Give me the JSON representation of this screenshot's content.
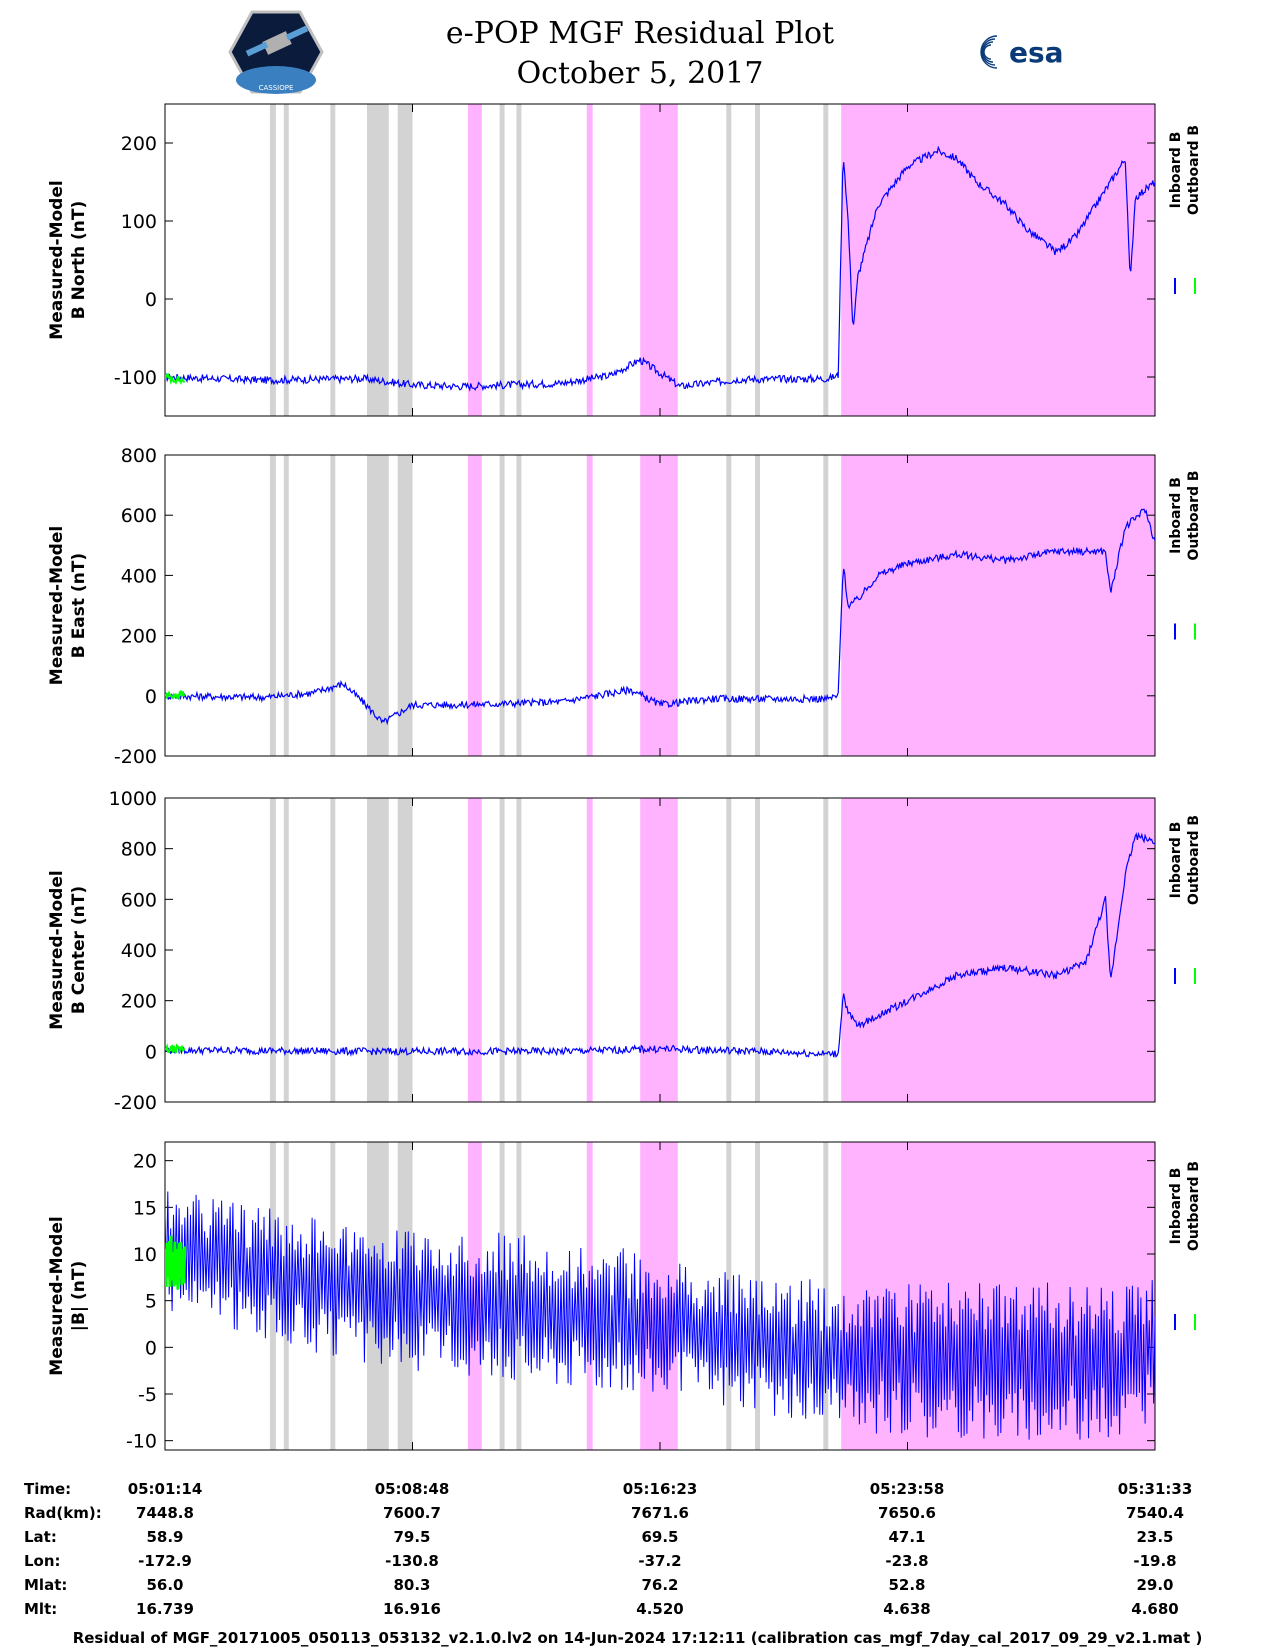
{
  "header": {
    "title_line1": "e-POP MGF Residual Plot",
    "title_line2": "October 5, 2017",
    "logo_left": "cassiope-mission-logo",
    "logo_right_text": "esa",
    "logo_left_text": "CASSIOPE"
  },
  "legend": {
    "inboard": "Inboard B",
    "outboard": "Outboard B",
    "inboard_color": "#0000ff",
    "outboard_color": "#00ff00"
  },
  "colors": {
    "gray_band": "#d3d3d3",
    "pink_band": "#ffb3ff",
    "inboard": "#0000ff",
    "outboard": "#00ff00"
  },
  "chart_data": [
    {
      "type": "line",
      "ylabel_line1": "Measured-Model",
      "ylabel_line2": "B North (nT)",
      "ylim": [
        -150,
        250
      ],
      "yticks": [
        -100,
        0,
        100,
        200
      ],
      "series": [
        {
          "name": "Inboard B",
          "values": [
            [
              0,
              -100
            ],
            [
              0.1,
              -104
            ],
            [
              0.2,
              -102
            ],
            [
              0.25,
              -110
            ],
            [
              0.3,
              -112
            ],
            [
              0.4,
              -108
            ],
            [
              0.45,
              -98
            ],
            [
              0.48,
              -78
            ],
            [
              0.52,
              -112
            ],
            [
              0.58,
              -103
            ],
            [
              0.67,
              -102
            ],
            [
              0.68,
              -98
            ],
            [
              0.685,
              190
            ],
            [
              0.69,
              100
            ],
            [
              0.695,
              -40
            ],
            [
              0.7,
              30
            ],
            [
              0.72,
              120
            ],
            [
              0.75,
              170
            ],
            [
              0.78,
              190
            ],
            [
              0.8,
              180
            ],
            [
              0.82,
              150
            ],
            [
              0.85,
              120
            ],
            [
              0.87,
              90
            ],
            [
              0.9,
              60
            ],
            [
              0.92,
              80
            ],
            [
              0.95,
              140
            ],
            [
              0.97,
              180
            ],
            [
              0.975,
              20
            ],
            [
              0.98,
              130
            ],
            [
              1.0,
              150
            ]
          ]
        },
        {
          "name": "Outboard B",
          "values": [
            [
              0,
              -100
            ],
            [
              0.02,
              -105
            ]
          ]
        }
      ]
    },
    {
      "type": "line",
      "ylabel_line1": "Measured-Model",
      "ylabel_line2": "B East (nT)",
      "ylim": [
        -200,
        800
      ],
      "yticks": [
        -200,
        0,
        200,
        400,
        600,
        800
      ],
      "series": [
        {
          "name": "Inboard B",
          "values": [
            [
              0,
              0
            ],
            [
              0.1,
              -5
            ],
            [
              0.15,
              10
            ],
            [
              0.18,
              40
            ],
            [
              0.2,
              -20
            ],
            [
              0.22,
              -90
            ],
            [
              0.25,
              -30
            ],
            [
              0.3,
              -30
            ],
            [
              0.4,
              -20
            ],
            [
              0.47,
              20
            ],
            [
              0.5,
              -30
            ],
            [
              0.55,
              -10
            ],
            [
              0.67,
              -10
            ],
            [
              0.68,
              0
            ],
            [
              0.685,
              440
            ],
            [
              0.69,
              300
            ],
            [
              0.7,
              320
            ],
            [
              0.72,
              400
            ],
            [
              0.75,
              440
            ],
            [
              0.8,
              470
            ],
            [
              0.85,
              450
            ],
            [
              0.9,
              480
            ],
            [
              0.95,
              480
            ],
            [
              0.955,
              340
            ],
            [
              0.97,
              560
            ],
            [
              0.99,
              620
            ],
            [
              1.0,
              510
            ]
          ]
        },
        {
          "name": "Outboard B",
          "values": [
            [
              0,
              0
            ],
            [
              0.02,
              5
            ]
          ]
        }
      ]
    },
    {
      "type": "line",
      "ylabel_line1": "Measured-Model",
      "ylabel_line2": "B Center (nT)",
      "ylim": [
        -200,
        1000
      ],
      "yticks": [
        -200,
        0,
        200,
        400,
        600,
        800,
        1000
      ],
      "series": [
        {
          "name": "Inboard B",
          "values": [
            [
              0,
              5
            ],
            [
              0.2,
              0
            ],
            [
              0.4,
              0
            ],
            [
              0.5,
              10
            ],
            [
              0.6,
              0
            ],
            [
              0.67,
              -10
            ],
            [
              0.68,
              -10
            ],
            [
              0.685,
              230
            ],
            [
              0.69,
              150
            ],
            [
              0.7,
              100
            ],
            [
              0.75,
              200
            ],
            [
              0.8,
              300
            ],
            [
              0.85,
              330
            ],
            [
              0.9,
              300
            ],
            [
              0.93,
              350
            ],
            [
              0.95,
              600
            ],
            [
              0.955,
              270
            ],
            [
              0.97,
              700
            ],
            [
              0.98,
              850
            ],
            [
              1.0,
              830
            ]
          ]
        },
        {
          "name": "Outboard B",
          "values": [
            [
              0,
              5
            ],
            [
              0.02,
              10
            ]
          ]
        }
      ]
    },
    {
      "type": "line",
      "ylabel_line1": "Measured-Model",
      "ylabel_line2": "|B| (nT)",
      "ylim": [
        -11,
        22
      ],
      "yticks": [
        -10,
        -5,
        0,
        5,
        10,
        15,
        20
      ],
      "series": [
        {
          "name": "Inboard B",
          "envelope_upper": [
            [
              0,
              17
            ],
            [
              0.2,
              13
            ],
            [
              0.4,
              12
            ],
            [
              0.5,
              10
            ],
            [
              0.6,
              8
            ],
            [
              0.68,
              7
            ],
            [
              0.8,
              7
            ],
            [
              0.9,
              7
            ],
            [
              0.95,
              7
            ],
            [
              1.0,
              8
            ]
          ],
          "envelope_lower": [
            [
              0,
              4
            ],
            [
              0.2,
              -2
            ],
            [
              0.4,
              -4
            ],
            [
              0.5,
              -5
            ],
            [
              0.6,
              -7
            ],
            [
              0.68,
              -9
            ],
            [
              0.8,
              -10
            ],
            [
              0.9,
              -10
            ],
            [
              0.95,
              -10
            ],
            [
              1.0,
              -8
            ]
          ]
        },
        {
          "name": "Outboard B",
          "envelope_upper": [
            [
              0,
              13
            ],
            [
              0.02,
              12
            ]
          ],
          "envelope_lower": [
            [
              0,
              5
            ],
            [
              0.02,
              6
            ]
          ]
        }
      ]
    }
  ],
  "bands": {
    "gray": [
      [
        0.106,
        0.112
      ],
      [
        0.12,
        0.125
      ],
      [
        0.167,
        0.172
      ],
      [
        0.204,
        0.226
      ],
      [
        0.235,
        0.25
      ],
      [
        0.338,
        0.343
      ],
      [
        0.355,
        0.36
      ],
      [
        0.567,
        0.572
      ],
      [
        0.596,
        0.601
      ],
      [
        0.665,
        0.67
      ],
      [
        0.795,
        0.81
      ],
      [
        0.825,
        0.833
      ],
      [
        0.904,
        0.91
      ],
      [
        0.925,
        0.93
      ],
      [
        0.945,
        0.95
      ],
      [
        0.955,
        0.96
      ],
      [
        0.975,
        0.98
      ]
    ],
    "pink": [
      [
        0.306,
        0.32
      ],
      [
        0.426,
        0.432
      ],
      [
        0.48,
        0.518
      ],
      [
        0.683,
        1.0
      ]
    ]
  },
  "footer": {
    "row_labels": [
      "Time:",
      "Rad(km):",
      "Lat:",
      "Lon:",
      "Mlat:",
      "Mlt:"
    ],
    "columns": [
      [
        "05:01:14",
        "7448.8",
        "58.9",
        "-172.9",
        "56.0",
        "16.739"
      ],
      [
        "05:08:48",
        "7600.7",
        "79.5",
        "-130.8",
        "80.3",
        "16.916"
      ],
      [
        "05:16:23",
        "7671.6",
        "69.5",
        "-37.2",
        "76.2",
        "4.520"
      ],
      [
        "05:23:58",
        "7650.6",
        "47.1",
        "-23.8",
        "52.8",
        "4.638"
      ],
      [
        "05:31:33",
        "7540.4",
        "23.5",
        "-19.8",
        "29.0",
        "4.680"
      ]
    ],
    "caption": "Residual of MGF_20171005_050113_053132_v2.1.0.lv2 on 14-Jun-2024 17:12:11 (calibration cas_mgf_7day_cal_2017_09_29_v2.1.mat )"
  }
}
